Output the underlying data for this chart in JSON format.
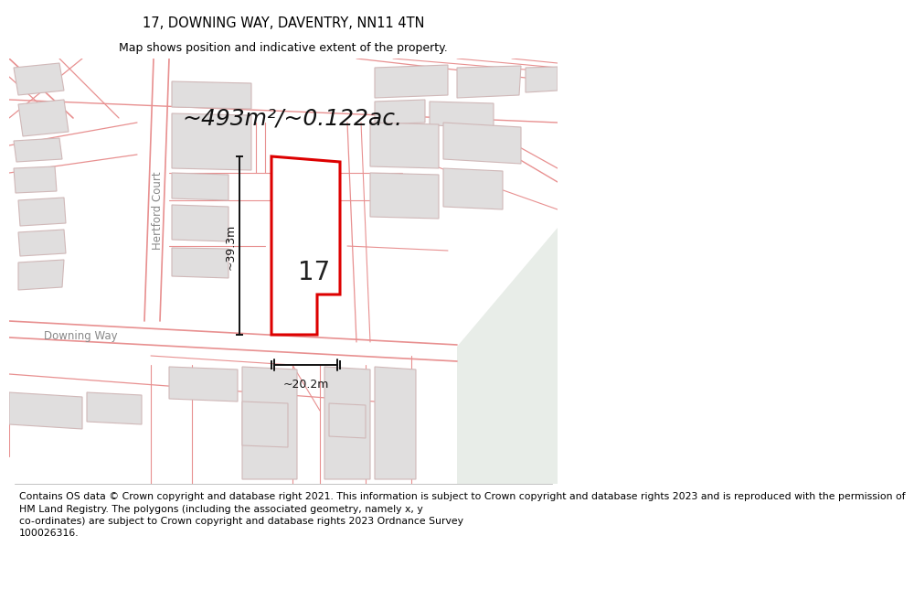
{
  "title": "17, DOWNING WAY, DAVENTRY, NN11 4TN",
  "subtitle": "Map shows position and indicative extent of the property.",
  "area_text": "~493m²/~0.122ac.",
  "house_number": "17",
  "dim_width": "~20.2m",
  "dim_height": "~39.3m",
  "footer": "Contains OS data © Crown copyright and database right 2021. This information is subject to Crown copyright and database rights 2023 and is reproduced with the permission of\nHM Land Registry. The polygons (including the associated geometry, namely x, y\nco-ordinates) are subject to Crown copyright and database rights 2023 Ordnance Survey\n100026316.",
  "map_bg": "#ffffff",
  "greenish_bg": "#e8ede8",
  "highlight_plot_color": "#dd0000",
  "road_line_color": "#e89090",
  "building_color": "#e0dede",
  "building_edge": "#d0b8b8",
  "title_fontsize": 10.5,
  "subtitle_fontsize": 9,
  "footer_fontsize": 7.8,
  "area_fontsize": 18,
  "number_fontsize": 20,
  "label_fontsize": 8.5
}
